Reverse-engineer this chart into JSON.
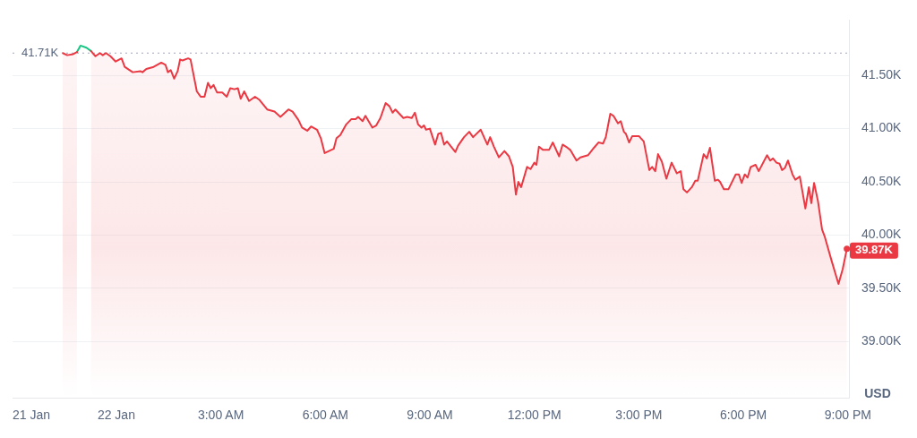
{
  "chart_data": {
    "type": "area",
    "ylabel": "USD",
    "x": [
      -1.54,
      -1.41,
      -1.24,
      -1.13,
      -1.03,
      -0.86,
      -0.73,
      -0.6,
      -0.47,
      -0.39,
      -0.3,
      -0.17,
      -0.02,
      0.15,
      0.24,
      0.47,
      0.69,
      0.75,
      0.86,
      1.07,
      1.29,
      1.41,
      1.48,
      1.56,
      1.66,
      1.76,
      1.83,
      1.9,
      2.06,
      2.13,
      2.31,
      2.42,
      2.53,
      2.63,
      2.71,
      2.79,
      2.89,
      3.04,
      3.17,
      3.27,
      3.39,
      3.49,
      3.57,
      3.67,
      3.81,
      3.98,
      4.11,
      4.33,
      4.54,
      4.71,
      4.94,
      5.06,
      5.23,
      5.33,
      5.48,
      5.59,
      5.76,
      5.87,
      5.98,
      6.17,
      6.24,
      6.32,
      6.43,
      6.6,
      6.75,
      6.87,
      6.94,
      7.07,
      7.15,
      7.35,
      7.46,
      7.58,
      7.73,
      7.84,
      7.93,
      8.01,
      8.24,
      8.35,
      8.48,
      8.57,
      8.66,
      8.76,
      8.83,
      8.89,
      9.0,
      9.15,
      9.24,
      9.32,
      9.41,
      9.49,
      9.73,
      9.81,
      9.98,
      10.13,
      10.24,
      10.46,
      10.54,
      10.65,
      10.73,
      10.84,
      10.98,
      11.14,
      11.27,
      11.38,
      11.47,
      11.54,
      11.62,
      11.79,
      11.89,
      12.0,
      12.06,
      12.13,
      12.25,
      12.42,
      12.53,
      12.71,
      12.81,
      12.91,
      13.03,
      13.21,
      13.32,
      13.54,
      13.71,
      13.84,
      13.97,
      14.05,
      14.18,
      14.27,
      14.4,
      14.48,
      14.57,
      14.63,
      14.72,
      14.81,
      15.0,
      15.14,
      15.3,
      15.38,
      15.47,
      15.55,
      15.66,
      15.79,
      15.94,
      16.09,
      16.2,
      16.28,
      16.38,
      16.52,
      16.62,
      16.69,
      16.86,
      16.95,
      17.04,
      17.18,
      17.27,
      17.33,
      17.44,
      17.57,
      17.78,
      17.87,
      17.95,
      18.04,
      18.12,
      18.21,
      18.35,
      18.44,
      18.68,
      18.77,
      18.85,
      18.95,
      19.04,
      19.11,
      19.19,
      19.28,
      19.41,
      19.49,
      19.62,
      19.78,
      19.88,
      19.95,
      20.03,
      20.14,
      20.26,
      20.33,
      20.54,
      20.73,
      20.85,
      20.97
    ],
    "series": [
      {
        "color": "#ea3943",
        "values": [
          41710,
          41690,
          41700,
          41720,
          null,
          null,
          41730,
          41680,
          41710,
          41690,
          41710,
          41680,
          41630,
          41660,
          41580,
          41530,
          41540,
          41530,
          41560,
          41580,
          41620,
          41600,
          41530,
          41550,
          41470,
          41540,
          41650,
          41640,
          41660,
          41650,
          41350,
          41300,
          41300,
          41430,
          41380,
          41410,
          41340,
          41340,
          41300,
          41380,
          41370,
          41380,
          41280,
          41350,
          41260,
          41300,
          41270,
          41180,
          41160,
          41110,
          41180,
          41160,
          41080,
          41010,
          40980,
          41020,
          40990,
          40910,
          40770,
          40800,
          40810,
          40910,
          40940,
          41040,
          41090,
          41090,
          41110,
          41070,
          41120,
          41010,
          41030,
          41100,
          41240,
          41210,
          41150,
          41180,
          41100,
          41110,
          41100,
          41150,
          41040,
          41010,
          41030,
          40990,
          41000,
          40850,
          40950,
          40960,
          40850,
          40880,
          40780,
          40840,
          40920,
          40970,
          40920,
          40990,
          40930,
          40850,
          40920,
          40830,
          40730,
          40790,
          40740,
          40640,
          40380,
          40500,
          40450,
          40640,
          40620,
          40680,
          40660,
          40830,
          40800,
          40800,
          40870,
          40740,
          40850,
          40830,
          40800,
          40700,
          40730,
          40750,
          40820,
          40870,
          40860,
          40920,
          41140,
          41120,
          41050,
          41070,
          40970,
          40950,
          40870,
          40930,
          40930,
          40880,
          40610,
          40640,
          40600,
          40760,
          40690,
          40530,
          40680,
          40580,
          40600,
          40430,
          40400,
          40450,
          40510,
          40510,
          40760,
          40720,
          40820,
          40510,
          40520,
          40500,
          40430,
          40430,
          40570,
          40570,
          40490,
          40570,
          40540,
          40640,
          40660,
          40600,
          40750,
          40700,
          40720,
          40680,
          40670,
          40610,
          40630,
          40700,
          40570,
          40520,
          40550,
          40250,
          40450,
          40300,
          40490,
          40320,
          40050,
          39990,
          39750,
          39540,
          39680,
          39870
        ]
      },
      {
        "type": "line",
        "color": "#16c784",
        "x": [
          -1.13,
          -1.03,
          -0.86,
          -0.73
        ],
        "values": [
          41720,
          41780,
          41760,
          41730
        ]
      }
    ],
    "xlim": [
      -2.98,
      21.03
    ],
    "xticks": [
      {
        "value": -2.44,
        "label": "21 Jan"
      },
      {
        "value": 0,
        "label": "22 Jan"
      },
      {
        "value": 3,
        "label": "3:00 AM"
      },
      {
        "value": 6,
        "label": "6:00 AM"
      },
      {
        "value": 9,
        "label": "9:00 AM"
      },
      {
        "value": 12,
        "label": "12:00 PM"
      },
      {
        "value": 15,
        "label": "3:00 PM"
      },
      {
        "value": 18,
        "label": "6:00 PM"
      },
      {
        "value": 21,
        "label": "9:00 PM"
      }
    ],
    "ylim": [
      38470,
      42020
    ],
    "yticks": [
      {
        "value": 39000,
        "label": "39.00K"
      },
      {
        "value": 39500,
        "label": "39.50K"
      },
      {
        "value": 40000,
        "label": "40.00K"
      },
      {
        "value": 40500,
        "label": "40.50K"
      },
      {
        "value": 41000,
        "label": "41.00K"
      },
      {
        "value": 41500,
        "label": "41.50K"
      }
    ],
    "ref_lines": [
      {
        "axis": "y",
        "value": 41710,
        "label": "41.71K",
        "color": "#a1a7bb",
        "line_style": "dotted"
      }
    ],
    "annotations": [
      {
        "text": "39.87K",
        "x": 20.97,
        "y": 39870
      }
    ],
    "grid": "y",
    "marker": "none",
    "line_style": "solid",
    "legend": false
  }
}
